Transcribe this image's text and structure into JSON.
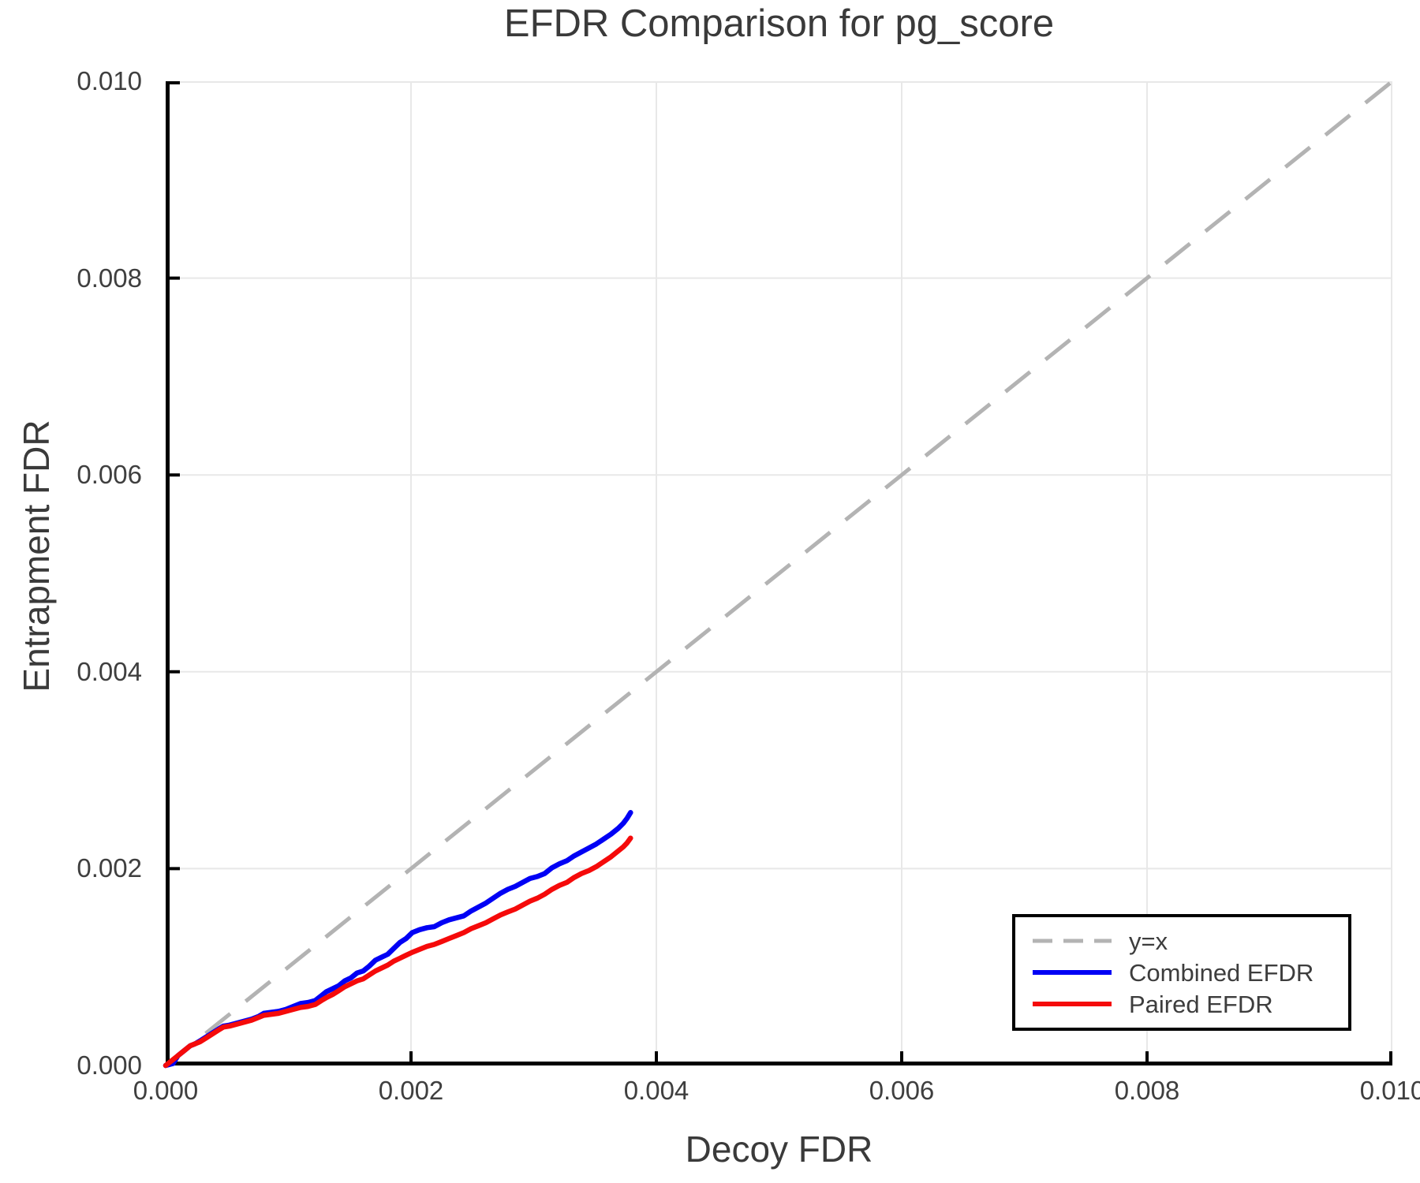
{
  "title": "EFDR Comparison for pg_score",
  "colors": {
    "identity_line": "#b3b3b3",
    "combined": "#0000f5",
    "paired": "#f50a0a",
    "grid": "#e8e8e8",
    "spine": "#000000",
    "text": "#3f3f3f"
  },
  "chart_data": {
    "type": "line",
    "title": "EFDR Comparison for pg_score",
    "xlabel": "Decoy FDR",
    "ylabel": "Entrapment FDR",
    "xlim": [
      0.0,
      0.01
    ],
    "ylim": [
      0.0,
      0.01
    ],
    "xticks": [
      0.0,
      0.002,
      0.004,
      0.006,
      0.008,
      0.01
    ],
    "yticks": [
      0.0,
      0.002,
      0.004,
      0.006,
      0.008,
      0.01
    ],
    "xtick_labels": [
      "0.000",
      "0.002",
      "0.004",
      "0.006",
      "0.008",
      "0.010"
    ],
    "ytick_labels": [
      "0.000",
      "0.002",
      "0.004",
      "0.006",
      "0.008",
      "0.010"
    ],
    "grid": true,
    "legend_position": "bottom-right",
    "series": [
      {
        "name": "y=x",
        "style": "dashed",
        "color": "#b3b3b3",
        "points": [
          [
            0.0,
            0.0
          ],
          [
            0.01,
            0.01
          ]
        ]
      },
      {
        "name": "Combined EFDR",
        "style": "solid",
        "color": "#0000f5",
        "points": [
          [
            0.0,
            0.0
          ],
          [
            6e-05,
            2e-05
          ],
          [
            0.0001,
            0.0001
          ],
          [
            0.00015,
            0.00015
          ],
          [
            0.0002,
            0.0002
          ],
          [
            0.00024,
            0.00022
          ],
          [
            0.00028,
            0.00025
          ],
          [
            0.00033,
            0.00029
          ],
          [
            0.00038,
            0.00033
          ],
          [
            0.00043,
            0.00037
          ],
          [
            0.00047,
            0.0004
          ],
          [
            0.00052,
            0.00041
          ],
          [
            0.00058,
            0.00043
          ],
          [
            0.00064,
            0.00045
          ],
          [
            0.0007,
            0.00047
          ],
          [
            0.00076,
            0.0005
          ],
          [
            0.0008,
            0.00053
          ],
          [
            0.00086,
            0.00054
          ],
          [
            0.00092,
            0.00055
          ],
          [
            0.00098,
            0.00057
          ],
          [
            0.00104,
            0.0006
          ],
          [
            0.0011,
            0.00063
          ],
          [
            0.00116,
            0.00064
          ],
          [
            0.00122,
            0.00066
          ],
          [
            0.00127,
            0.00071
          ],
          [
            0.00131,
            0.00075
          ],
          [
            0.00136,
            0.00078
          ],
          [
            0.00141,
            0.00081
          ],
          [
            0.00146,
            0.00086
          ],
          [
            0.00151,
            0.00089
          ],
          [
            0.00156,
            0.00094
          ],
          [
            0.00161,
            0.00096
          ],
          [
            0.00166,
            0.00101
          ],
          [
            0.00171,
            0.00107
          ],
          [
            0.00176,
            0.0011
          ],
          [
            0.00181,
            0.00113
          ],
          [
            0.00186,
            0.00119
          ],
          [
            0.00191,
            0.00125
          ],
          [
            0.00196,
            0.00129
          ],
          [
            0.00201,
            0.00135
          ],
          [
            0.00207,
            0.00138
          ],
          [
            0.00213,
            0.0014
          ],
          [
            0.00219,
            0.00141
          ],
          [
            0.00225,
            0.00145
          ],
          [
            0.00231,
            0.00148
          ],
          [
            0.00237,
            0.0015
          ],
          [
            0.00243,
            0.00152
          ],
          [
            0.00249,
            0.00157
          ],
          [
            0.00255,
            0.00161
          ],
          [
            0.00261,
            0.00165
          ],
          [
            0.00267,
            0.0017
          ],
          [
            0.00273,
            0.00175
          ],
          [
            0.00279,
            0.00179
          ],
          [
            0.00285,
            0.00182
          ],
          [
            0.00291,
            0.00186
          ],
          [
            0.00297,
            0.0019
          ],
          [
            0.00303,
            0.00192
          ],
          [
            0.00309,
            0.00195
          ],
          [
            0.00315,
            0.00201
          ],
          [
            0.00321,
            0.00205
          ],
          [
            0.00327,
            0.00208
          ],
          [
            0.00333,
            0.00213
          ],
          [
            0.00339,
            0.00217
          ],
          [
            0.00345,
            0.00221
          ],
          [
            0.00351,
            0.00225
          ],
          [
            0.00357,
            0.0023
          ],
          [
            0.00363,
            0.00235
          ],
          [
            0.00369,
            0.00241
          ],
          [
            0.00373,
            0.00246
          ],
          [
            0.00376,
            0.00251
          ],
          [
            0.00379,
            0.00257
          ]
        ]
      },
      {
        "name": "Paired EFDR",
        "style": "solid",
        "color": "#f50a0a",
        "points": [
          [
            0.0,
            0.0
          ],
          [
            5e-05,
            5e-05
          ],
          [
            0.0001,
            0.0001
          ],
          [
            0.00015,
            0.00015
          ],
          [
            0.0002,
            0.0002
          ],
          [
            0.00024,
            0.00022
          ],
          [
            0.00028,
            0.00024
          ],
          [
            0.00033,
            0.00028
          ],
          [
            0.00038,
            0.00032
          ],
          [
            0.00043,
            0.00036
          ],
          [
            0.00047,
            0.00039
          ],
          [
            0.00052,
            0.0004
          ],
          [
            0.00058,
            0.00042
          ],
          [
            0.00064,
            0.00044
          ],
          [
            0.0007,
            0.00046
          ],
          [
            0.00076,
            0.00049
          ],
          [
            0.0008,
            0.00051
          ],
          [
            0.00086,
            0.00052
          ],
          [
            0.00092,
            0.00053
          ],
          [
            0.00098,
            0.00055
          ],
          [
            0.00104,
            0.00057
          ],
          [
            0.0011,
            0.00059
          ],
          [
            0.00116,
            0.0006
          ],
          [
            0.00122,
            0.00062
          ],
          [
            0.00127,
            0.00066
          ],
          [
            0.00131,
            0.00069
          ],
          [
            0.00136,
            0.00072
          ],
          [
            0.00141,
            0.00076
          ],
          [
            0.00146,
            0.0008
          ],
          [
            0.00151,
            0.00083
          ],
          [
            0.00156,
            0.00086
          ],
          [
            0.00161,
            0.00088
          ],
          [
            0.00166,
            0.00092
          ],
          [
            0.00171,
            0.00096
          ],
          [
            0.00176,
            0.00099
          ],
          [
            0.00181,
            0.00102
          ],
          [
            0.00186,
            0.00106
          ],
          [
            0.00191,
            0.00109
          ],
          [
            0.00196,
            0.00112
          ],
          [
            0.00201,
            0.00115
          ],
          [
            0.00207,
            0.00118
          ],
          [
            0.00213,
            0.00121
          ],
          [
            0.00219,
            0.00123
          ],
          [
            0.00225,
            0.00126
          ],
          [
            0.00231,
            0.00129
          ],
          [
            0.00237,
            0.00132
          ],
          [
            0.00243,
            0.00135
          ],
          [
            0.00249,
            0.00139
          ],
          [
            0.00255,
            0.00142
          ],
          [
            0.00261,
            0.00145
          ],
          [
            0.00267,
            0.00149
          ],
          [
            0.00273,
            0.00153
          ],
          [
            0.00279,
            0.00156
          ],
          [
            0.00285,
            0.00159
          ],
          [
            0.00291,
            0.00163
          ],
          [
            0.00297,
            0.00167
          ],
          [
            0.00303,
            0.0017
          ],
          [
            0.00309,
            0.00174
          ],
          [
            0.00315,
            0.00179
          ],
          [
            0.00321,
            0.00183
          ],
          [
            0.00327,
            0.00186
          ],
          [
            0.00333,
            0.00191
          ],
          [
            0.00339,
            0.00195
          ],
          [
            0.00345,
            0.00198
          ],
          [
            0.00351,
            0.00202
          ],
          [
            0.00357,
            0.00207
          ],
          [
            0.00363,
            0.00212
          ],
          [
            0.00369,
            0.00218
          ],
          [
            0.00373,
            0.00222
          ],
          [
            0.00376,
            0.00226
          ],
          [
            0.00379,
            0.00231
          ]
        ]
      }
    ]
  },
  "legend": {
    "entries": [
      "y=x",
      "Combined EFDR",
      "Paired EFDR"
    ]
  },
  "axis": {
    "xlabel": "Decoy FDR",
    "ylabel": "Entrapment FDR"
  }
}
